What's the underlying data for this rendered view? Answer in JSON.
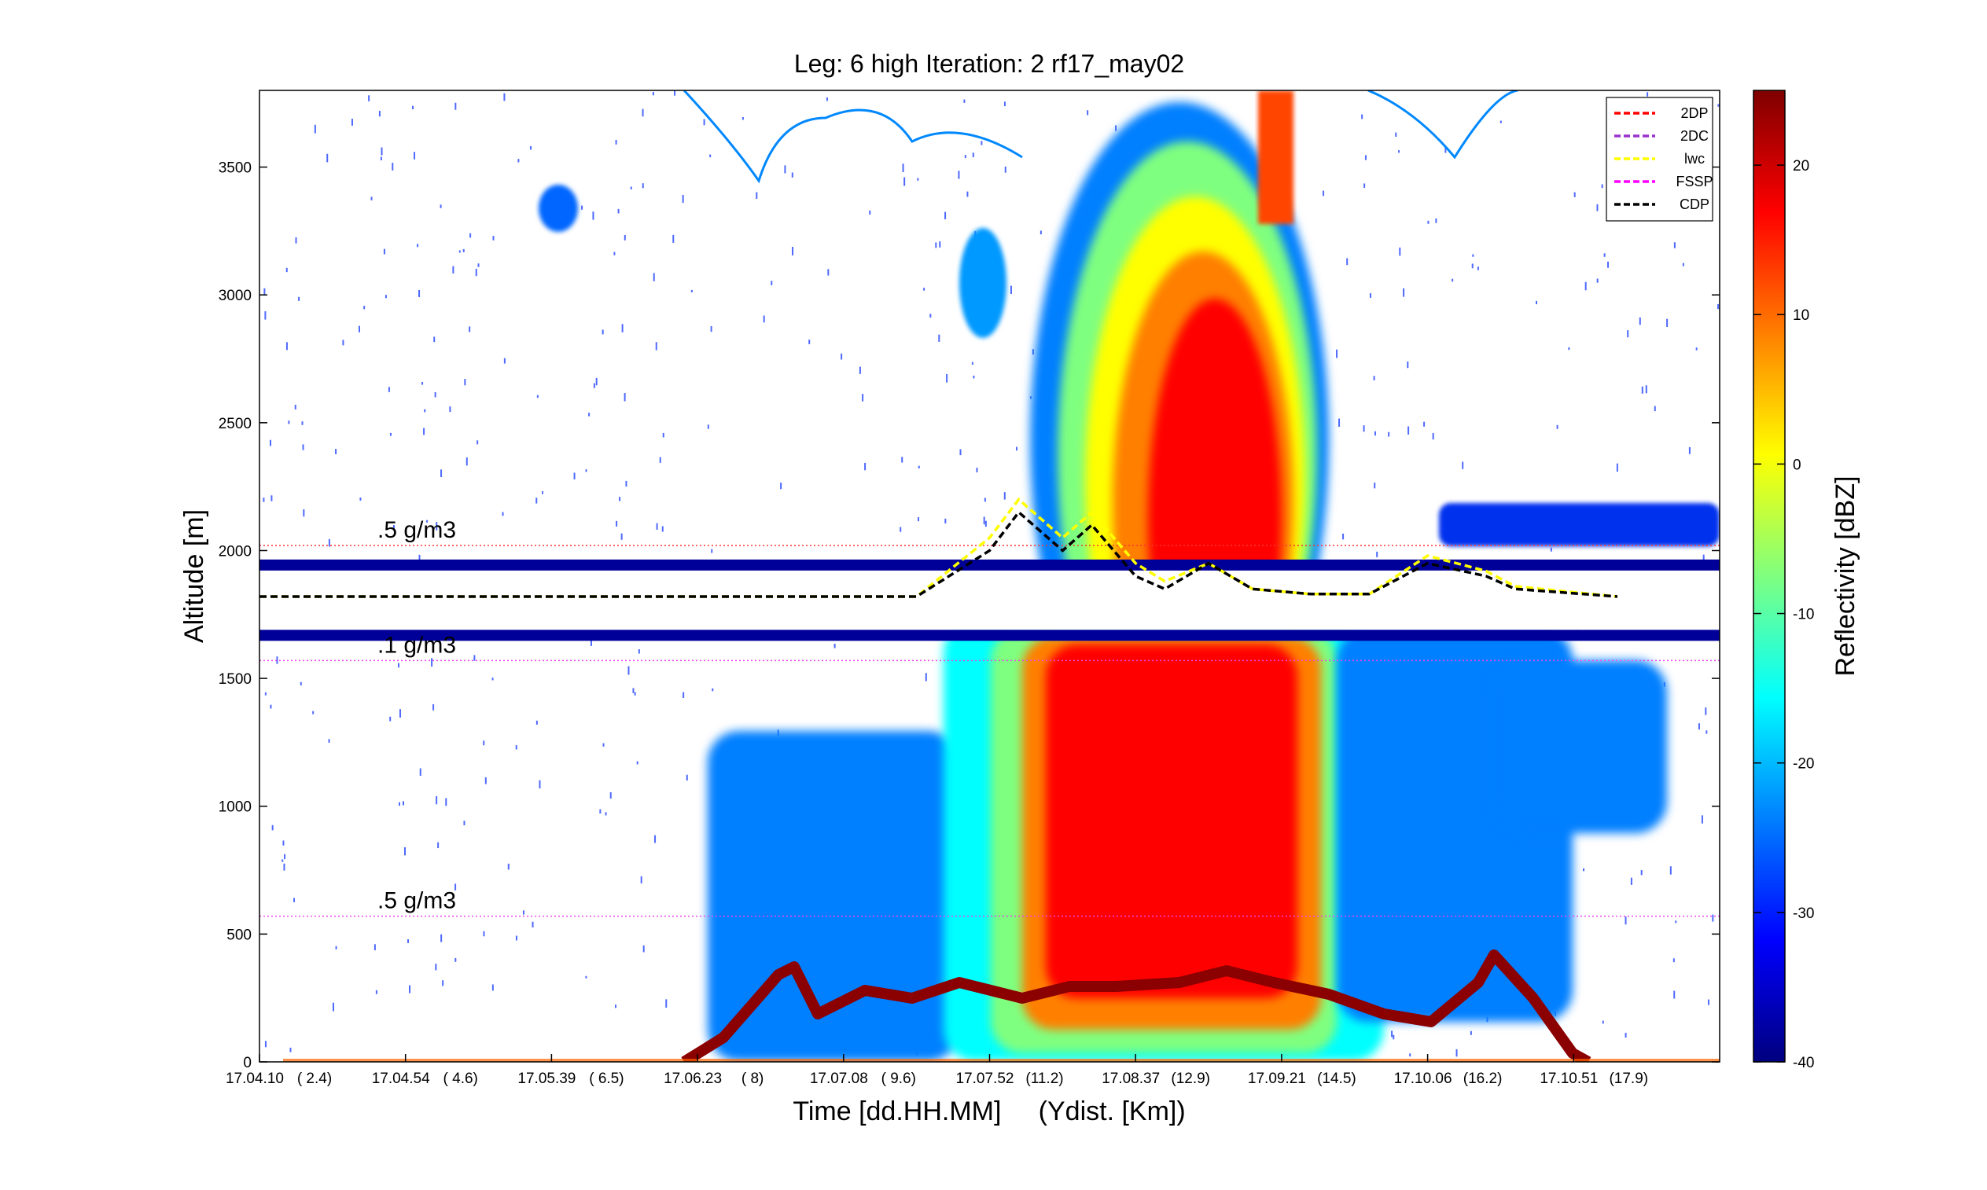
{
  "chart_data": {
    "type": "heatmap",
    "title": "Leg: 6 high Iteration: 2  rf17_may02",
    "xlabel": "Time [dd.HH.MM]     (Ydist. [Km])",
    "ylabel": "Altitude [m]",
    "colorbar_label": "Reflectivity [dBZ]",
    "x_ticks": [
      {
        "value": 0.0,
        "time": "17.04.10",
        "dist": "( 2.4)"
      },
      {
        "value": 0.1,
        "time": "17.04.54",
        "dist": "( 4.6)"
      },
      {
        "value": 0.2,
        "time": "17.05.39",
        "dist": "( 6.5)"
      },
      {
        "value": 0.3,
        "time": "17.06.23",
        "dist": "(  8)"
      },
      {
        "value": 0.4,
        "time": "17.07.08",
        "dist": "( 9.6)"
      },
      {
        "value": 0.5,
        "time": "17.07.52",
        "dist": "(11.2)"
      },
      {
        "value": 0.6,
        "time": "17.08.37",
        "dist": "(12.9)"
      },
      {
        "value": 0.7,
        "time": "17.09.21",
        "dist": "(14.5)"
      },
      {
        "value": 0.8,
        "time": "17.10.06",
        "dist": "(16.2)"
      },
      {
        "value": 0.9,
        "time": "17.10.51",
        "dist": "(17.9)"
      }
    ],
    "ylim": [
      0,
      3800
    ],
    "y_ticks": [
      0,
      500,
      1000,
      1500,
      2000,
      2500,
      3000,
      3500
    ],
    "colorbar_range": [
      -40,
      25
    ],
    "colorbar_ticks": [
      -40,
      -30,
      -20,
      -10,
      0,
      10,
      20
    ],
    "colormap": [
      "#00007f",
      "#0000ff",
      "#007fff",
      "#00ffff",
      "#7fff7f",
      "#ffff00",
      "#ff7f00",
      "#ff0000",
      "#7f0000"
    ],
    "flight_altitude": 1820,
    "reference_lines": [
      {
        "label": ".5 g/m3",
        "altitude": 2020,
        "color": "#ff3333"
      },
      {
        "label": ".1 g/m3",
        "altitude": 1570,
        "color": "#ee44ee"
      },
      {
        "label": ".5 g/m3",
        "altitude": 570,
        "color": "#ee44ee"
      }
    ],
    "legend": {
      "placement": "top-right",
      "entries": [
        {
          "name": "2DP",
          "color": "#ff0000"
        },
        {
          "name": "2DC",
          "color": "#9933cc"
        },
        {
          "name": "lwc",
          "color": "#ffff00"
        },
        {
          "name": "FSSP",
          "color": "#ff00ff"
        },
        {
          "name": "CDP",
          "color": "#000000"
        }
      ]
    },
    "series": [
      {
        "name": "CDP",
        "x": [
          0,
          0.45,
          0.5,
          0.52,
          0.55,
          0.57,
          0.6,
          0.62,
          0.65,
          0.68,
          0.72,
          0.76,
          0.8,
          0.84,
          0.86,
          0.93
        ],
        "y": [
          1820,
          1820,
          2000,
          2150,
          2000,
          2100,
          1900,
          1850,
          1950,
          1850,
          1830,
          1830,
          1950,
          1900,
          1850,
          1820
        ]
      },
      {
        "name": "lwc",
        "x": [
          0,
          0.45,
          0.5,
          0.52,
          0.55,
          0.57,
          0.6,
          0.62,
          0.65,
          0.68,
          0.72,
          0.76,
          0.8,
          0.84,
          0.86,
          0.93
        ],
        "y": [
          1820,
          1820,
          2050,
          2200,
          2050,
          2150,
          1950,
          1880,
          1950,
          1850,
          1830,
          1830,
          1980,
          1920,
          1860,
          1820
        ]
      }
    ]
  }
}
